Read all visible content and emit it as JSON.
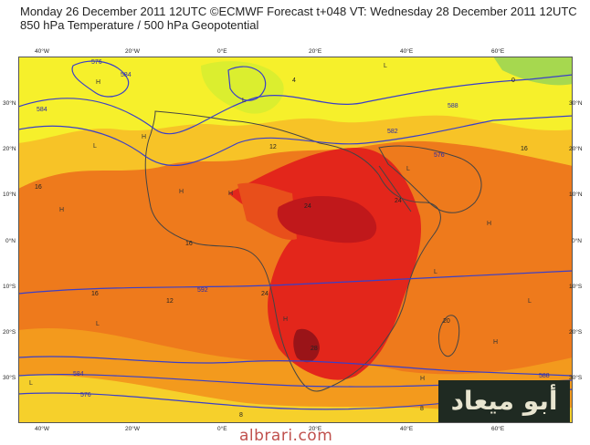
{
  "header": {
    "line1": "Monday 26 December 2011 12UTC ©ECMWF Forecast t+048 VT: Wednesday 28 December 2011 12UTC",
    "line2": "850 hPa Temperature / 500 hPa Geopotential"
  },
  "axes": {
    "top_lon": [
      "40°W",
      "20°W",
      "0°E",
      "20°E",
      "40°E",
      "60°E"
    ],
    "bottom_lon": [
      "40°W",
      "20°W",
      "0°E",
      "20°E",
      "40°E",
      "60°E"
    ],
    "left_lat": [
      "30°N",
      "20°N",
      "10°N",
      "0°N",
      "10°S",
      "20°S",
      "30°S"
    ],
    "right_lat": [
      "30°N",
      "20°N",
      "10°N",
      "0°N",
      "10°S",
      "20°S",
      "30°S"
    ]
  },
  "contour_labels": {
    "geopotential": [
      "584",
      "576",
      "582",
      "588",
      "584",
      "576",
      "584",
      "592",
      "588",
      "576"
    ],
    "temperature": [
      "16",
      "12",
      "24",
      "24",
      "12",
      "8",
      "28",
      "16",
      "16",
      "8",
      "4",
      "0",
      "20",
      "24",
      "16"
    ]
  },
  "pressure_markers": [
    "H",
    "L",
    "H",
    "L",
    "L",
    "H",
    "H",
    "L",
    "H",
    "H",
    "L",
    "L",
    "H",
    "L",
    "H",
    "L",
    "H"
  ],
  "watermark": {
    "arabic": "أبو ميعاد",
    "url": "albrari.com"
  },
  "colors": {
    "cold_green": "#a6d84f",
    "yellow_green": "#dbee2f",
    "yellow": "#f6f02b",
    "light_orange": "#f7c327",
    "orange": "#f39a1d",
    "deep_orange": "#ee7a1c",
    "red_orange": "#e84f1b",
    "red": "#e3261b",
    "dark_red": "#c0181b",
    "contour": "#3a3fc8",
    "coast": "#444444"
  }
}
